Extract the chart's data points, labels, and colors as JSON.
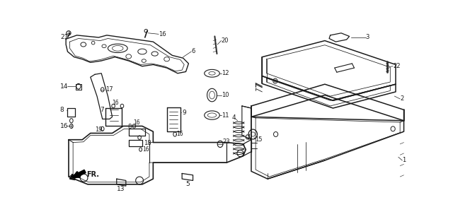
{
  "bg_color": "#ffffff",
  "line_color": "#1a1a1a",
  "fig_width": 6.4,
  "fig_height": 3.0,
  "dpi": 100,
  "label_fs": 6.0,
  "lw_main": 0.9,
  "lw_inner": 0.55
}
